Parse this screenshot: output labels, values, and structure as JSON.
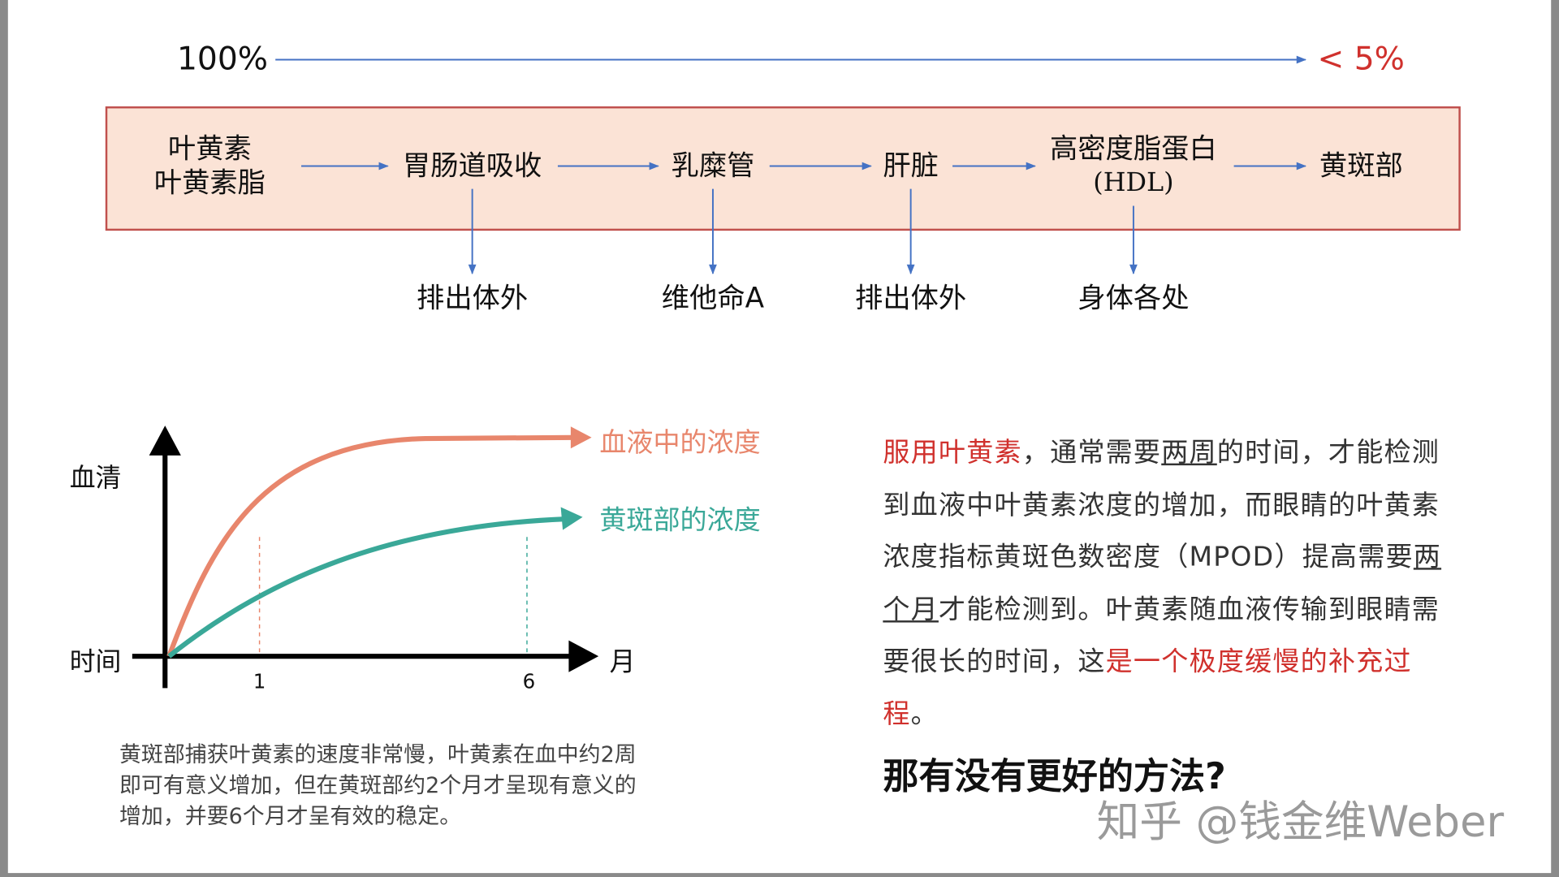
{
  "top_scale": {
    "start": "100%",
    "end": "< 5%"
  },
  "flow": {
    "nodes": [
      {
        "line1": "叶黄素",
        "line2": "叶黄素脂"
      },
      {
        "line1": "胃肠道吸收"
      },
      {
        "line1": "乳糜管"
      },
      {
        "line1": "肝脏"
      },
      {
        "line1": "高密度脂蛋白",
        "line2": "(HDL)"
      },
      {
        "line1": "黄斑部"
      }
    ],
    "outputs": [
      "排出体外",
      "维他命A",
      "排出体外",
      "身体各处"
    ]
  },
  "chart_data": {
    "type": "line",
    "ylabel": "血清",
    "xlabel_origin": "时间",
    "x_unit": "月",
    "x_ticks": [
      "1",
      "6"
    ],
    "series": [
      {
        "name": "血液中的浓度",
        "color": "#e8866c"
      },
      {
        "name": "黄斑部的浓度",
        "color": "#3aa898"
      }
    ]
  },
  "caption": {
    "lines": [
      "黄斑部捕获叶黄素的速度非常慢，叶黄素在血中约2周",
      "即可有意义增加，但在黄斑部约2个月才呈现有意义的",
      "增加，并要6个月才呈有效的稳定。"
    ]
  },
  "paragraph": {
    "segments": [
      {
        "text": "服用叶黄素",
        "style": "red"
      },
      {
        "text": "，通常需要",
        "style": ""
      },
      {
        "text": "两周",
        "style": "ul"
      },
      {
        "text": "的时间，才能检测到血液中叶黄素浓度的增加，而眼睛的叶黄素浓度指标黄斑色数密度（MPOD）提高需要",
        "style": ""
      },
      {
        "text": "两个月",
        "style": "ul"
      },
      {
        "text": "才能检测到。叶黄素随血液传输到眼睛需要很长的时间，这",
        "style": ""
      },
      {
        "text": "是一个极度缓慢的补充过程",
        "style": "red"
      },
      {
        "text": "。",
        "style": ""
      }
    ]
  },
  "question": "那有没有更好的方法?",
  "watermark": "知乎 @钱金维Weber",
  "colors": {
    "accent_red": "#d0312d",
    "box_fill": "#fbe3d6",
    "box_border": "#c0504d",
    "arrow_blue": "#4472c4"
  }
}
